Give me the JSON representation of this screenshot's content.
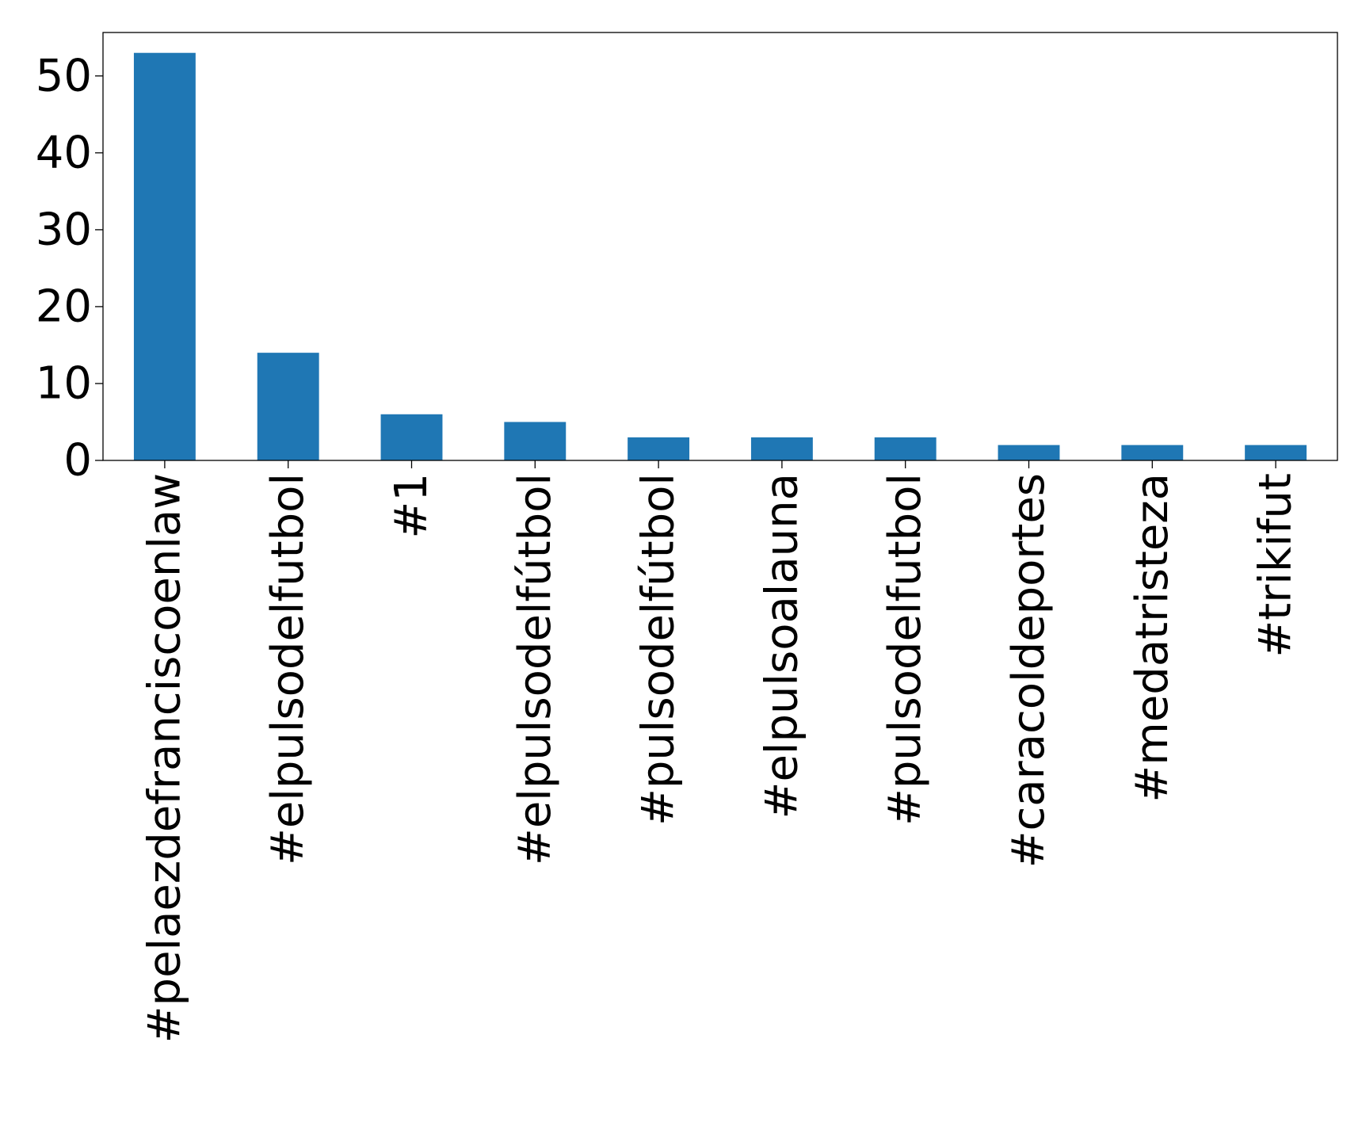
{
  "chart_data": {
    "type": "bar",
    "title": "",
    "xlabel": "",
    "ylabel": "",
    "categories": [
      "#pelaezdefranciscoenlaw",
      "#elpulsodelfutbol",
      "#1",
      "#elpulsodelfútbol",
      "#pulsodelfútbol",
      "#elpulsoalauna",
      "#pulsodelfutbol",
      "#caracoldeportes",
      "#medatristeza",
      "#trikifut"
    ],
    "values": [
      53,
      14,
      6,
      5,
      3,
      3,
      3,
      2,
      2,
      2
    ],
    "ylim": [
      0,
      55.65
    ],
    "yticks": [
      0,
      10,
      20,
      30,
      40,
      50
    ],
    "ytick_labels": [
      "0",
      "10",
      "20",
      "30",
      "40",
      "50"
    ],
    "bar_color": "#1f77b4",
    "grid": false,
    "legend": "none"
  }
}
